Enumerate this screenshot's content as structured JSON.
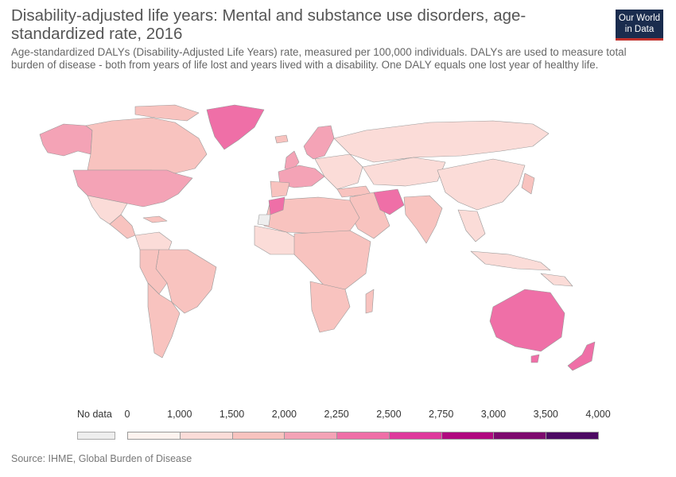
{
  "header": {
    "title": "Disability-adjusted life years: Mental and substance use disorders, age-standardized rate, 2016",
    "subtitle": "Age-standardized DALYs (Disability-Adjusted Life Years) rate, measured per 100,000 individuals. DALYs are used to measure total burden of disease - both from years of life lost and years lived with a disability. One DALY equals one lost year of healthy life."
  },
  "logo": {
    "line1": "Our World",
    "line2": "in Data",
    "bg_color": "#1a2c4e",
    "accent_color": "#c0302b"
  },
  "legend": {
    "no_data_label": "No data",
    "no_data_color": "#eeeeee",
    "ticks": [
      "0",
      "1,000",
      "1,500",
      "2,000",
      "2,250",
      "2,500",
      "2,750",
      "3,000",
      "3,500",
      "4,000"
    ],
    "bins": [
      {
        "color": "#fdf3ef"
      },
      {
        "color": "#fbdcd8"
      },
      {
        "color": "#f8c3bf"
      },
      {
        "color": "#f4a3b6"
      },
      {
        "color": "#ef6fa7"
      },
      {
        "color": "#de3a9c"
      },
      {
        "color": "#b0097f"
      },
      {
        "color": "#7d0a6e"
      },
      {
        "color": "#4d0a63"
      }
    ]
  },
  "source": "Source: IHME, Global Burden of Disease"
}
